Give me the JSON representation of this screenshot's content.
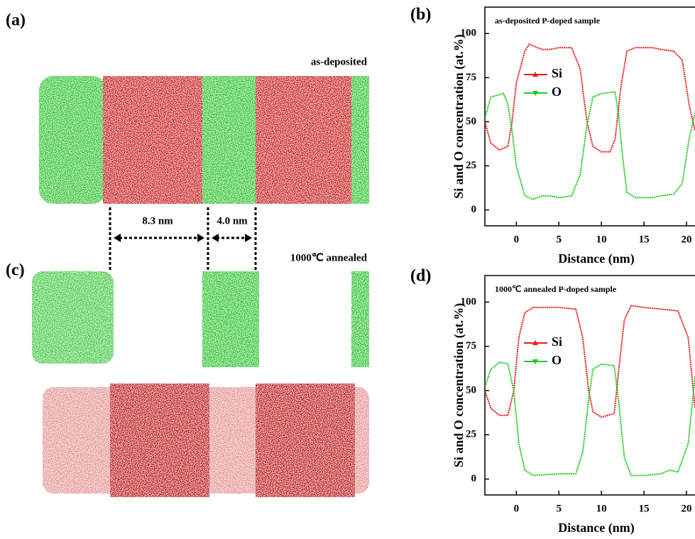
{
  "panel_labels": [
    "(a)",
    "(b)",
    "(c)",
    "(d)"
  ],
  "image_labels": {
    "top": "as-deposited",
    "bottom": "1000℃ annealed",
    "spacing": [
      "8.3 nm",
      "4.0 nm"
    ]
  },
  "chart_data": [
    {
      "type": "line",
      "title": "as-deposited P-doped sample",
      "xlabel": "Distance (nm)",
      "ylabel": "Si and O concentration (at.%)",
      "xlim": [
        -3.7,
        21
      ],
      "ylim": [
        -9,
        115
      ],
      "xticks": [
        0,
        5,
        10,
        15,
        20
      ],
      "yticks": [
        0,
        25,
        50,
        75,
        100
      ],
      "series": [
        {
          "name": "Si",
          "color": "#e8191b",
          "x": [
            -3.7,
            -3,
            -2,
            -1,
            -0.5,
            0,
            1,
            1.5,
            3,
            4,
            5,
            6.5,
            7.5,
            8.3,
            9,
            10,
            11,
            11.6,
            12.3,
            13,
            14,
            16,
            17,
            18.5,
            19.5,
            20.3,
            21
          ],
          "values": [
            50,
            38,
            34,
            36,
            50,
            72,
            90,
            94,
            91,
            91,
            92,
            92,
            80,
            50,
            36,
            33,
            33,
            40,
            70,
            90,
            92,
            92,
            91,
            90,
            85,
            60,
            45
          ]
        },
        {
          "name": "O",
          "color": "#1fc81f",
          "x": [
            -3.7,
            -3,
            -1.5,
            -1,
            -0.5,
            0,
            1,
            2,
            3,
            4,
            5,
            6.5,
            7.5,
            8.3,
            9,
            10,
            11.6,
            12,
            12.5,
            13,
            14,
            16,
            17,
            18.5,
            19.5,
            20.3,
            21
          ],
          "values": [
            52,
            64,
            66,
            60,
            45,
            25,
            8,
            6,
            8,
            8,
            7,
            8,
            20,
            48,
            64,
            66,
            67,
            55,
            30,
            10,
            7,
            7,
            8,
            9,
            15,
            40,
            55
          ]
        }
      ]
    },
    {
      "type": "line",
      "title": "1000℃ annealed P-doped sample",
      "xlabel": "Distance (nm)",
      "ylabel": "Si and O concentration (at.%)",
      "xlim": [
        -3.7,
        21
      ],
      "ylim": [
        -9,
        115
      ],
      "xticks": [
        0,
        5,
        10,
        15,
        20
      ],
      "yticks": [
        0,
        25,
        50,
        75,
        100
      ],
      "series": [
        {
          "name": "Si",
          "color": "#e8191b",
          "x": [
            -3.7,
            -3,
            -2,
            -1,
            -0.3,
            0.3,
            1,
            2,
            5,
            7,
            7.8,
            8.5,
            9,
            10,
            11.5,
            12,
            12.7,
            13.5,
            15,
            17,
            19,
            20.2,
            21
          ],
          "values": [
            50,
            40,
            36,
            36,
            50,
            80,
            94,
            97,
            97,
            96,
            80,
            50,
            38,
            35,
            37,
            60,
            90,
            98,
            97,
            96,
            95,
            80,
            40
          ]
        },
        {
          "name": "O",
          "color": "#1fc81f",
          "x": [
            -3.7,
            -3,
            -2,
            -1,
            -0.3,
            0.3,
            1,
            2,
            5,
            7,
            7.8,
            8.5,
            9,
            10,
            11.5,
            12,
            12.7,
            13.5,
            15,
            17,
            18,
            19,
            20.2,
            21
          ],
          "values": [
            52,
            62,
            66,
            65,
            50,
            20,
            5,
            2,
            3,
            3,
            15,
            45,
            62,
            65,
            64,
            45,
            12,
            2,
            2,
            3,
            5,
            4,
            20,
            58
          ]
        }
      ]
    }
  ]
}
